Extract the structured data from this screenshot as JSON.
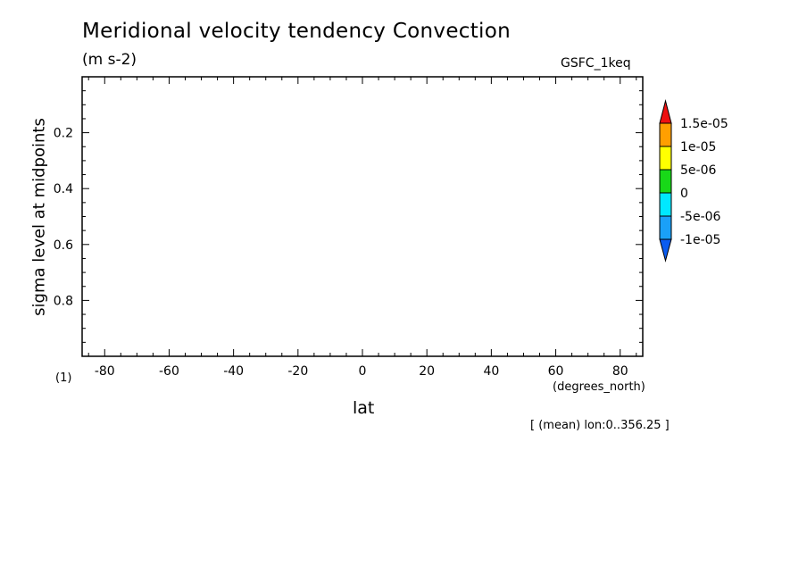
{
  "figure": {
    "model": "GSFC_1keq",
    "figure_number": "(1)",
    "x_units": "(degrees_north)",
    "footnote": "[ (mean) lon:0..356.25 ]"
  },
  "chart_data": {
    "type": "heatmap",
    "title": "Meridional velocity tendency Convection",
    "units": "(m s-2)",
    "xlabel": "lat",
    "ylabel": "sigma level at midpoints",
    "xlim": [
      -87,
      87
    ],
    "ylim": [
      1.0,
      0.0
    ],
    "y_inverted": true,
    "x_ticks": [
      -80,
      -60,
      -40,
      -20,
      0,
      20,
      40,
      60,
      80
    ],
    "x_tick_labels": [
      "-80",
      "-60",
      "-40",
      "-20",
      "0",
      "20",
      "40",
      "60",
      "80"
    ],
    "y_ticks": [
      0.2,
      0.4,
      0.6,
      0.8
    ],
    "y_tick_labels": [
      "0.2",
      "0.4",
      "0.6",
      "0.8"
    ],
    "grid": false,
    "values": [],
    "colorbar": {
      "placement": "right",
      "levels": [
        -1e-05,
        -5e-06,
        0,
        5e-06,
        1e-05,
        1.5e-05
      ],
      "labels": [
        "-1e-05",
        "-5e-06",
        "0",
        "5e-06",
        "1e-05",
        "1.5e-05"
      ],
      "colors": [
        "#0a5cf0",
        "#1aa0f8",
        "#00e8ff",
        "#18d818",
        "#ffff00",
        "#ff9f00",
        "#ee1111"
      ]
    }
  }
}
